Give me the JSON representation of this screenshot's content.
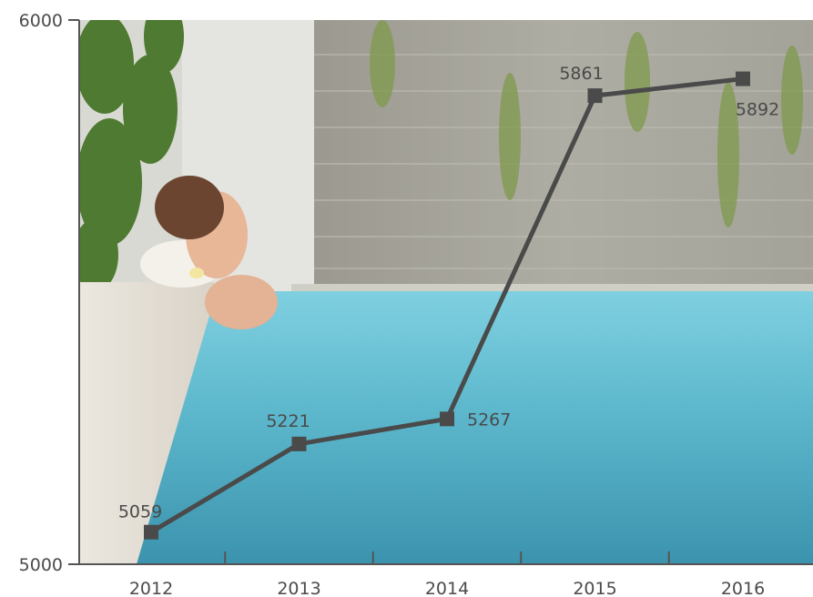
{
  "chart_data": {
    "type": "line",
    "categories": [
      "2012",
      "2013",
      "2014",
      "2015",
      "2016"
    ],
    "values": [
      5059,
      5221,
      5267,
      5861,
      5892
    ],
    "data_labels": [
      "5059",
      "5221",
      "5267",
      "5861",
      "5892"
    ],
    "ylim": [
      5000,
      6000
    ],
    "y_tick_labels": [
      "6000",
      "5000"
    ],
    "grid": false,
    "legend": "none",
    "background": "photo of a woman relaxing at the edge of a pool",
    "colors": {
      "line": "#4a4a4a",
      "marker": "#4a4a4a",
      "axis": "#555555",
      "text": "#4b4b4b",
      "sky": "#c9cdc8",
      "wall": "#a7a69c",
      "water_top": "#6cc2d6",
      "water_bottom": "#3f9cb4",
      "foliage": "#5b7e3a"
    }
  }
}
